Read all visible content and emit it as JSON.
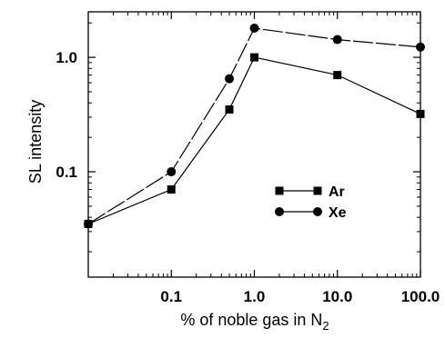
{
  "chart_data": {
    "type": "line",
    "xlabel": "% of noble gas in N",
    "xlabel_subscript": "2",
    "ylabel": "SL intensity",
    "xscale": "log",
    "yscale": "log",
    "xlim": [
      0.01,
      100
    ],
    "ylim": [
      0.012,
      2.5
    ],
    "xticks": [
      {
        "value": 0.1,
        "label": "0.1"
      },
      {
        "value": 1,
        "label": "1.0"
      },
      {
        "value": 10,
        "label": "10.0"
      },
      {
        "value": 100,
        "label": "100.0"
      }
    ],
    "yticks": [
      {
        "value": 0.1,
        "label": "0.1"
      },
      {
        "value": 1,
        "label": "1.0"
      }
    ],
    "grid": false,
    "legend_position": "center-right",
    "series": [
      {
        "name": "Ar",
        "marker": "square",
        "line": "solid",
        "x": [
          0.01,
          0.1,
          0.5,
          1,
          10,
          100
        ],
        "y": [
          0.035,
          0.07,
          0.35,
          1.0,
          0.7,
          0.32
        ]
      },
      {
        "name": "Xe",
        "marker": "circle",
        "line": "dashed",
        "x": [
          0.01,
          0.1,
          0.5,
          1,
          10,
          100
        ],
        "y": [
          0.035,
          0.1,
          0.65,
          1.8,
          1.43,
          1.23
        ]
      }
    ]
  }
}
